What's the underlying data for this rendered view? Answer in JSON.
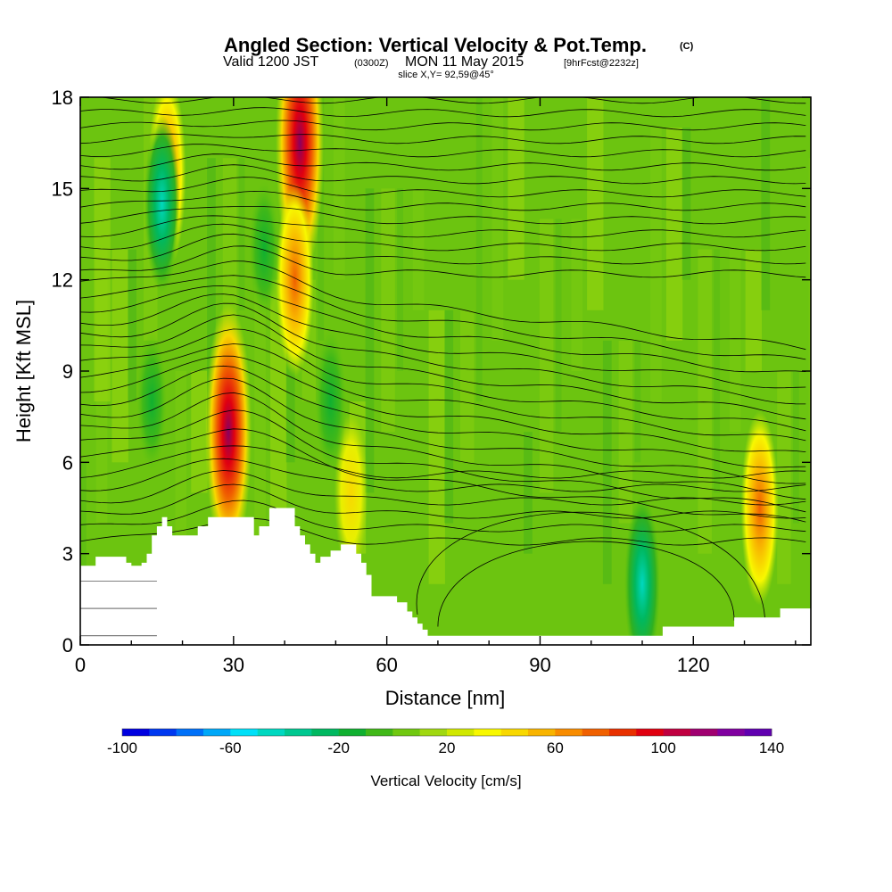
{
  "header": {
    "title": "Angled Section: Vertical Velocity & Pot.Temp.",
    "title_mark": "(C)",
    "valid_prefix": "Valid 1200 JST",
    "valid_utc": "(0300Z)",
    "valid_date": "MON 11 May 2015",
    "forecast": "[9hrFcst@2232z]",
    "slice": "slice X,Y= 92,59@45°"
  },
  "chart_data": {
    "type": "heatmap",
    "title": "Angled Section: Vertical Velocity & Pot.Temp.",
    "xlabel": "Distance [nm]",
    "ylabel": "Height [Kft MSL]",
    "xlim": [
      0,
      143
    ],
    "ylim": [
      0,
      18
    ],
    "x_ticks": [
      0,
      30,
      60,
      90,
      120
    ],
    "x_tick_labels": [
      "0",
      "30",
      "60",
      "90",
      "120"
    ],
    "y_ticks": [
      0,
      3,
      6,
      9,
      12,
      15,
      18
    ],
    "y_tick_labels": [
      "0",
      "3",
      "6",
      "9",
      "12",
      "15",
      "18"
    ],
    "colorbar": {
      "label": "Vertical Velocity [cm/s]",
      "min": -100,
      "max": 140,
      "step": 10,
      "tick_values": [
        -100,
        -60,
        -20,
        20,
        60,
        100,
        140
      ],
      "tick_labels": [
        "-100",
        "-60",
        "-20",
        "20",
        "60",
        "100",
        "140"
      ],
      "colors": [
        "#0000e0",
        "#0038f0",
        "#0070f8",
        "#00a8f8",
        "#00e0f8",
        "#00d8c0",
        "#00c890",
        "#00b860",
        "#10b030",
        "#40b818",
        "#70c810",
        "#a0d810",
        "#d0e800",
        "#f8f800",
        "#f8d800",
        "#f8b400",
        "#f88c00",
        "#f06000",
        "#e83000",
        "#e00010",
        "#c00040",
        "#a00070",
        "#8000a0",
        "#6000b0"
      ]
    },
    "field_features": [
      {
        "kind": "updraft",
        "x": 43,
        "y": 16.5,
        "value": 110
      },
      {
        "kind": "updraft",
        "x": 29,
        "y": 7.0,
        "value": 100
      },
      {
        "kind": "updraft",
        "x": 42,
        "y": 12.0,
        "value": 60
      },
      {
        "kind": "updraft",
        "x": 17,
        "y": 15.5,
        "value": 60
      },
      {
        "kind": "updraft",
        "x": 53,
        "y": 5.0,
        "value": 40
      },
      {
        "kind": "updraft",
        "x": 133,
        "y": 4.5,
        "value": 60
      },
      {
        "kind": "downdraft",
        "x": 16,
        "y": 14.5,
        "value": -50
      },
      {
        "kind": "downdraft",
        "x": 36,
        "y": 13.0,
        "value": -25
      },
      {
        "kind": "downdraft",
        "x": 14,
        "y": 8.0,
        "value": -25
      },
      {
        "kind": "downdraft",
        "x": 49,
        "y": 8.0,
        "value": -30
      },
      {
        "kind": "downdraft",
        "x": 110,
        "y": 2.0,
        "value": -50
      }
    ],
    "terrain": [
      [
        0,
        2.6
      ],
      [
        3,
        2.9
      ],
      [
        8,
        2.9
      ],
      [
        9,
        2.7
      ],
      [
        10,
        2.6
      ],
      [
        12,
        2.7
      ],
      [
        13,
        3.0
      ],
      [
        14,
        3.6
      ],
      [
        15,
        3.9
      ],
      [
        16,
        4.2
      ],
      [
        17,
        3.9
      ],
      [
        18,
        3.6
      ],
      [
        22,
        3.6
      ],
      [
        23,
        3.9
      ],
      [
        25,
        4.2
      ],
      [
        33,
        4.2
      ],
      [
        34,
        3.6
      ],
      [
        35,
        3.9
      ],
      [
        37,
        4.5
      ],
      [
        41,
        4.5
      ],
      [
        42,
        3.9
      ],
      [
        43,
        3.6
      ],
      [
        44,
        3.3
      ],
      [
        45,
        3.0
      ],
      [
        46,
        2.7
      ],
      [
        47,
        2.9
      ],
      [
        49,
        3.1
      ],
      [
        51,
        3.3
      ],
      [
        53,
        3.3
      ],
      [
        54,
        3.0
      ],
      [
        55,
        2.7
      ],
      [
        56,
        2.3
      ],
      [
        57,
        1.6
      ],
      [
        59,
        1.6
      ],
      [
        62,
        1.4
      ],
      [
        64,
        1.1
      ],
      [
        65,
        0.9
      ],
      [
        66,
        0.7
      ],
      [
        67,
        0.5
      ],
      [
        68,
        0.3
      ],
      [
        71,
        0.3
      ],
      [
        100,
        0.3
      ],
      [
        113,
        0.3
      ],
      [
        114,
        0.6
      ],
      [
        127,
        0.6
      ],
      [
        128,
        0.9
      ],
      [
        134,
        0.9
      ],
      [
        137,
        1.2
      ],
      [
        143,
        1.2
      ]
    ]
  }
}
